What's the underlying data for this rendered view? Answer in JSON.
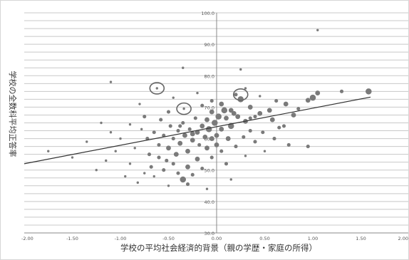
{
  "chart_data": {
    "type": "scatter",
    "title": "",
    "xlabel": "学校の平均社会経済的背景（親の学歴・家庭の所得）",
    "ylabel": "学校の全数科平均正答率",
    "xlim": [
      -2.0,
      2.0
    ],
    "ylim": [
      30.0,
      100.0
    ],
    "x_ticks": [
      "-2.00",
      "-1.50",
      "-1.00",
      "-0.50",
      "0.00",
      "0.50",
      "1.00",
      "1.50",
      "2.00"
    ],
    "y_ticks": [
      "30.0",
      "40.0",
      "50.0",
      "60.0",
      "70.0",
      "80.0",
      "90.0",
      "100.0"
    ],
    "grid": true,
    "colors": {
      "points": "#7a7a7a",
      "grid": "#c8c8c8",
      "trendline": "#333333",
      "highlight": "#666666"
    },
    "trendline": {
      "x": [
        -2.0,
        1.6
      ],
      "y": [
        52.0,
        73.2
      ]
    },
    "highlight_circles": [
      {
        "x": -0.62,
        "y": 76.0
      },
      {
        "x": -0.34,
        "y": 69.5
      },
      {
        "x": 0.25,
        "y": 74.0
      }
    ],
    "points": [
      {
        "x": 1.58,
        "y": 75.0,
        "s": 5
      },
      {
        "x": 1.3,
        "y": 75.0,
        "s": 3
      },
      {
        "x": 1.05,
        "y": 74.5,
        "s": 4
      },
      {
        "x": 1.0,
        "y": 73.0,
        "s": 5
      },
      {
        "x": 0.95,
        "y": 72.2,
        "s": 4
      },
      {
        "x": 0.85,
        "y": 69.5,
        "s": 3
      },
      {
        "x": 0.8,
        "y": 67.5,
        "s": 4
      },
      {
        "x": 0.72,
        "y": 71.0,
        "s": 4
      },
      {
        "x": 0.7,
        "y": 64.0,
        "s": 3
      },
      {
        "x": 0.75,
        "y": 58.0,
        "s": 3
      },
      {
        "x": 0.95,
        "y": 57.5,
        "s": 3
      },
      {
        "x": 1.05,
        "y": 94.5,
        "s": 2
      },
      {
        "x": 0.55,
        "y": 69.0,
        "s": 4
      },
      {
        "x": 0.58,
        "y": 66.0,
        "s": 4
      },
      {
        "x": 0.62,
        "y": 72.0,
        "s": 3
      },
      {
        "x": 0.45,
        "y": 68.0,
        "s": 4
      },
      {
        "x": 0.48,
        "y": 62.0,
        "s": 3
      },
      {
        "x": 0.4,
        "y": 67.0,
        "s": 3
      },
      {
        "x": 0.35,
        "y": 70.0,
        "s": 4
      },
      {
        "x": 0.3,
        "y": 65.5,
        "s": 4
      },
      {
        "x": 0.25,
        "y": 72.5,
        "s": 5
      },
      {
        "x": 0.2,
        "y": 74.0,
        "s": 3
      },
      {
        "x": 0.18,
        "y": 68.0,
        "s": 4
      },
      {
        "x": 0.15,
        "y": 64.0,
        "s": 5
      },
      {
        "x": 0.1,
        "y": 66.5,
        "s": 4
      },
      {
        "x": 0.12,
        "y": 60.0,
        "s": 4
      },
      {
        "x": 0.08,
        "y": 69.0,
        "s": 5
      },
      {
        "x": 0.05,
        "y": 63.0,
        "s": 4
      },
      {
        "x": 0.02,
        "y": 67.0,
        "s": 5
      },
      {
        "x": 0.0,
        "y": 61.0,
        "s": 4
      },
      {
        "x": -0.02,
        "y": 65.0,
        "s": 5
      },
      {
        "x": -0.05,
        "y": 68.5,
        "s": 4
      },
      {
        "x": -0.08,
        "y": 63.0,
        "s": 5
      },
      {
        "x": -0.1,
        "y": 66.0,
        "s": 4
      },
      {
        "x": -0.12,
        "y": 60.5,
        "s": 4
      },
      {
        "x": -0.15,
        "y": 64.0,
        "s": 4
      },
      {
        "x": -0.18,
        "y": 58.0,
        "s": 3
      },
      {
        "x": -0.2,
        "y": 62.0,
        "s": 4
      },
      {
        "x": -0.22,
        "y": 66.5,
        "s": 3
      },
      {
        "x": -0.25,
        "y": 59.5,
        "s": 4
      },
      {
        "x": -0.28,
        "y": 63.0,
        "s": 3
      },
      {
        "x": -0.3,
        "y": 56.0,
        "s": 4
      },
      {
        "x": -0.33,
        "y": 61.0,
        "s": 4
      },
      {
        "x": -0.35,
        "y": 65.0,
        "s": 3
      },
      {
        "x": -0.38,
        "y": 58.5,
        "s": 4
      },
      {
        "x": -0.4,
        "y": 62.5,
        "s": 3
      },
      {
        "x": -0.42,
        "y": 55.0,
        "s": 4
      },
      {
        "x": -0.45,
        "y": 60.0,
        "s": 3
      },
      {
        "x": -0.48,
        "y": 64.0,
        "s": 3
      },
      {
        "x": -0.5,
        "y": 57.0,
        "s": 4
      },
      {
        "x": -0.52,
        "y": 53.0,
        "s": 3
      },
      {
        "x": -0.55,
        "y": 61.0,
        "s": 3
      },
      {
        "x": -0.58,
        "y": 66.0,
        "s": 3
      },
      {
        "x": -0.6,
        "y": 58.0,
        "s": 3
      },
      {
        "x": -0.65,
        "y": 62.0,
        "s": 3
      },
      {
        "x": -0.7,
        "y": 55.0,
        "s": 3
      },
      {
        "x": -0.72,
        "y": 60.0,
        "s": 3
      },
      {
        "x": -0.78,
        "y": 63.0,
        "s": 2
      },
      {
        "x": -0.85,
        "y": 57.0,
        "s": 2
      },
      {
        "x": -0.9,
        "y": 52.0,
        "s": 2
      },
      {
        "x": -1.0,
        "y": 60.0,
        "s": 2
      },
      {
        "x": -1.05,
        "y": 56.0,
        "s": 2
      },
      {
        "x": -1.1,
        "y": 62.0,
        "s": 2
      },
      {
        "x": -1.15,
        "y": 53.0,
        "s": 2
      },
      {
        "x": -1.2,
        "y": 65.0,
        "s": 2
      },
      {
        "x": -1.35,
        "y": 59.0,
        "s": 2
      },
      {
        "x": -1.5,
        "y": 54.0,
        "s": 2
      },
      {
        "x": -1.75,
        "y": 56.0,
        "s": 2
      },
      {
        "x": -1.1,
        "y": 78.0,
        "s": 2
      },
      {
        "x": -0.62,
        "y": 76.0,
        "s": 2
      },
      {
        "x": -0.34,
        "y": 69.5,
        "s": 2
      },
      {
        "x": -0.3,
        "y": 51.0,
        "s": 4
      },
      {
        "x": -0.35,
        "y": 47.0,
        "s": 5
      },
      {
        "x": -0.2,
        "y": 53.5,
        "s": 4
      },
      {
        "x": -0.1,
        "y": 57.0,
        "s": 4
      },
      {
        "x": -0.05,
        "y": 54.0,
        "s": 3
      },
      {
        "x": 0.05,
        "y": 56.0,
        "s": 3
      },
      {
        "x": 0.1,
        "y": 52.0,
        "s": 3
      },
      {
        "x": -0.45,
        "y": 52.0,
        "s": 3
      },
      {
        "x": -0.55,
        "y": 50.0,
        "s": 3
      },
      {
        "x": -0.4,
        "y": 49.0,
        "s": 3
      },
      {
        "x": -0.25,
        "y": 48.5,
        "s": 3
      },
      {
        "x": -0.15,
        "y": 50.5,
        "s": 3
      },
      {
        "x": 0.0,
        "y": 58.0,
        "s": 4
      },
      {
        "x": 0.2,
        "y": 57.5,
        "s": 3
      },
      {
        "x": 0.28,
        "y": 60.5,
        "s": 3
      },
      {
        "x": 0.35,
        "y": 62.5,
        "s": 3
      },
      {
        "x": 0.4,
        "y": 59.0,
        "s": 3
      },
      {
        "x": -0.6,
        "y": 54.0,
        "s": 3
      },
      {
        "x": -0.68,
        "y": 51.0,
        "s": 3
      },
      {
        "x": -0.75,
        "y": 49.0,
        "s": 2
      },
      {
        "x": -0.82,
        "y": 46.0,
        "s": 2
      },
      {
        "x": -0.5,
        "y": 45.0,
        "s": 2
      },
      {
        "x": -0.3,
        "y": 45.5,
        "s": 3
      },
      {
        "x": -0.1,
        "y": 44.0,
        "s": 2
      },
      {
        "x": 0.15,
        "y": 47.0,
        "s": 2
      },
      {
        "x": -0.15,
        "y": 70.5,
        "s": 3
      },
      {
        "x": -0.05,
        "y": 72.0,
        "s": 3
      },
      {
        "x": 0.05,
        "y": 71.0,
        "s": 4
      },
      {
        "x": 0.3,
        "y": 76.0,
        "s": 2
      },
      {
        "x": 0.45,
        "y": 73.5,
        "s": 2
      },
      {
        "x": -0.2,
        "y": 74.5,
        "s": 2
      },
      {
        "x": -0.45,
        "y": 73.0,
        "s": 2
      },
      {
        "x": -0.8,
        "y": 71.0,
        "s": 2
      },
      {
        "x": -0.5,
        "y": 68.5,
        "s": 3
      },
      {
        "x": -0.75,
        "y": 67.0,
        "s": 3
      },
      {
        "x": -0.9,
        "y": 64.5,
        "s": 2
      },
      {
        "x": -0.95,
        "y": 48.0,
        "s": 2
      },
      {
        "x": -1.25,
        "y": 50.0,
        "s": 2
      },
      {
        "x": -0.65,
        "y": 48.0,
        "s": 2
      },
      {
        "x": 0.3,
        "y": 54.5,
        "s": 2
      },
      {
        "x": 0.5,
        "y": 56.0,
        "s": 2
      },
      {
        "x": 0.6,
        "y": 60.0,
        "s": 3
      },
      {
        "x": 0.65,
        "y": 63.5,
        "s": 3
      },
      {
        "x": 0.25,
        "y": 82.0,
        "s": 2
      },
      {
        "x": -0.35,
        "y": 82.5,
        "s": 2
      },
      {
        "x": 0.15,
        "y": 69.0,
        "s": 4
      },
      {
        "x": 0.22,
        "y": 67.0,
        "s": 4
      },
      {
        "x": 0.35,
        "y": 66.5,
        "s": 3
      },
      {
        "x": -0.05,
        "y": 60.0,
        "s": 4
      },
      {
        "x": -0.25,
        "y": 61.5,
        "s": 4
      },
      {
        "x": -0.38,
        "y": 64.0,
        "s": 3
      }
    ]
  }
}
